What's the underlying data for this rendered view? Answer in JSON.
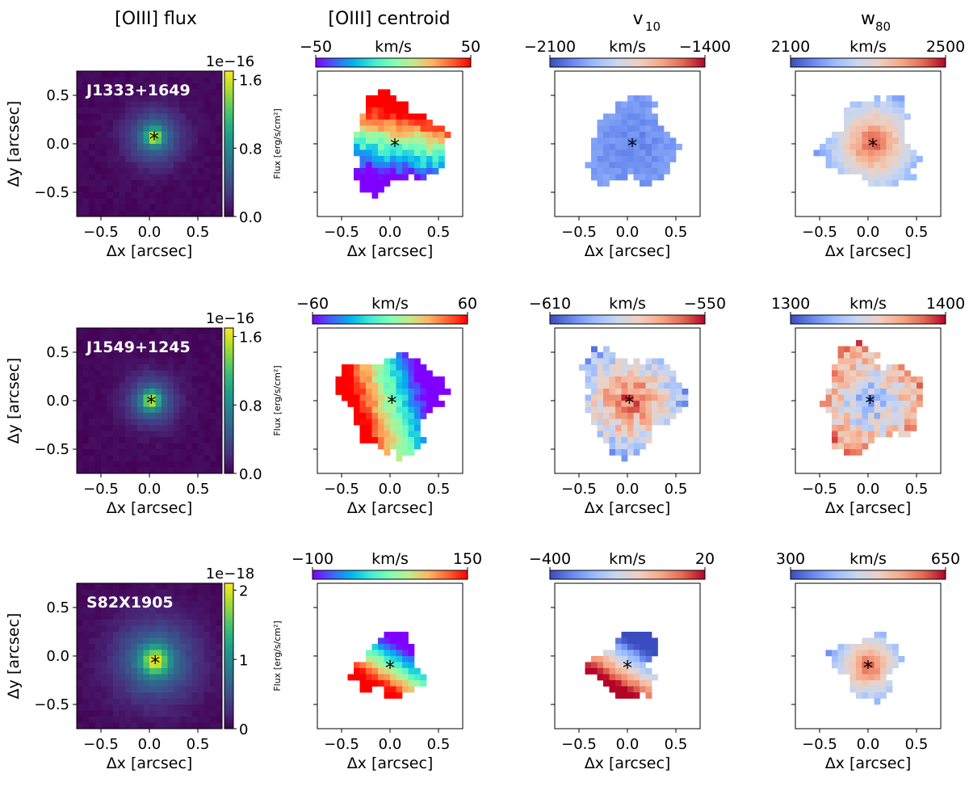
{
  "column_titles": [
    "[OIII] flux",
    "[OIII] centroid",
    "v",
    "w"
  ],
  "column_title_subscripts": [
    "",
    "",
    "10",
    "80"
  ],
  "colors": {
    "viridis": [
      "#440154",
      "#482878",
      "#3e4989",
      "#31688e",
      "#26828e",
      "#1f9e89",
      "#35b779",
      "#6ece58",
      "#b5de2b",
      "#fde725"
    ],
    "rainbow": [
      "#8000ff",
      "#4062fa",
      "#00b5eb",
      "#40ecd4",
      "#80ffb4",
      "#c0eb8d",
      "#ffb462",
      "#ff6232",
      "#ff0000"
    ],
    "coolwarm": [
      "#3b4cc0",
      "#6788ee",
      "#9abbff",
      "#c9d7f0",
      "#edd1c2",
      "#f7a889",
      "#e26952",
      "#b40426"
    ]
  },
  "chart_data": [
    {
      "type": "heatmap",
      "quantity": "[OIII] flux",
      "object": "J1333+1649",
      "colormap": "viridis",
      "colorbar": "vertical",
      "xlabel": "Δx [arcsec]",
      "ylabel": "Δy [arcsec]",
      "xlim": [
        -0.75,
        0.75
      ],
      "ylim": [
        -0.75,
        0.75
      ],
      "xticks": [
        "−0.5",
        "0.0",
        "0.5"
      ],
      "yticks": [
        "0.5",
        "0.0",
        "−0.5"
      ],
      "cbar_label": "Flux [erg/s/cm²]",
      "cbar_offset": "1e−16",
      "cbar_ticks": [
        "1.6",
        "0.8",
        "0.0"
      ],
      "cbar_range": [
        0.0,
        1.7
      ],
      "center": [
        0.05,
        0.07
      ],
      "peak_value": 1.7,
      "core_sigma": 0.06,
      "halo_sigma": 0.2
    },
    {
      "type": "heatmap",
      "quantity": "[OIII] centroid",
      "object": "J1333+1649",
      "colormap": "rainbow",
      "colorbar": "horizontal",
      "xlabel": "Δx [arcsec]",
      "xlim": [
        -0.75,
        0.75
      ],
      "ylim": [
        -0.75,
        0.75
      ],
      "xticks": [
        "−0.5",
        "0.0",
        "0.5"
      ],
      "cbar_unit": "km/s",
      "cbar_ticks": [
        "−50",
        "50"
      ],
      "cbar_range": [
        -50,
        50
      ],
      "center": [
        0.05,
        0.0
      ],
      "mask_radius": 0.47,
      "mask_shape": "irregular",
      "pattern": "gradient",
      "gradient_direction": [
        0.2,
        1.0
      ],
      "noise": 0.2
    },
    {
      "type": "heatmap",
      "quantity": "v10",
      "object": "J1333+1649",
      "colormap": "coolwarm",
      "colorbar": "horizontal",
      "xlabel": "Δx [arcsec]",
      "xlim": [
        -0.75,
        0.75
      ],
      "ylim": [
        -0.75,
        0.75
      ],
      "xticks": [
        "−0.5",
        "0.0",
        "0.5"
      ],
      "cbar_unit": "km/s",
      "cbar_ticks": [
        "−2100",
        "−1400"
      ],
      "cbar_range": [
        -2100,
        -1400
      ],
      "center": [
        0.05,
        0.0
      ],
      "mask_radius": 0.45,
      "mask_shape": "irregular",
      "pattern": "uniform-low",
      "noise": 0.08
    },
    {
      "type": "heatmap",
      "quantity": "w80",
      "object": "J1333+1649",
      "colormap": "coolwarm",
      "colorbar": "horizontal",
      "xlabel": "Δx [arcsec]",
      "xlim": [
        -0.75,
        0.75
      ],
      "ylim": [
        -0.75,
        0.75
      ],
      "xticks": [
        "−0.5",
        "0.0",
        "0.5"
      ],
      "cbar_unit": "km/s",
      "cbar_ticks": [
        "2100",
        "2500"
      ],
      "cbar_range": [
        2100,
        2500
      ],
      "center": [
        0.05,
        0.0
      ],
      "mask_radius": 0.45,
      "mask_shape": "irregular",
      "pattern": "peak-center",
      "noise": 0.1
    },
    {
      "type": "heatmap",
      "quantity": "[OIII] flux",
      "object": "J1549+1245",
      "colormap": "viridis",
      "colorbar": "vertical",
      "xlabel": "Δx [arcsec]",
      "ylabel": "Δy [arcsec]",
      "xlim": [
        -0.75,
        0.75
      ],
      "ylim": [
        -0.75,
        0.75
      ],
      "xticks": [
        "−0.5",
        "0.0",
        "0.5"
      ],
      "yticks": [
        "0.5",
        "0.0",
        "−0.5"
      ],
      "cbar_label": "Flux [erg/s/cm²]",
      "cbar_offset": "1e−16",
      "cbar_ticks": [
        "1.6",
        "0.8",
        "0.0"
      ],
      "cbar_range": [
        0.0,
        1.7
      ],
      "center": [
        0.02,
        0.0
      ],
      "peak_value": 1.7,
      "core_sigma": 0.06,
      "halo_sigma": 0.18
    },
    {
      "type": "heatmap",
      "quantity": "[OIII] centroid",
      "object": "J1549+1245",
      "colormap": "rainbow",
      "colorbar": "horizontal",
      "xlabel": "Δx [arcsec]",
      "xlim": [
        -0.75,
        0.75
      ],
      "ylim": [
        -0.75,
        0.75
      ],
      "xticks": [
        "−0.5",
        "0.0",
        "0.5"
      ],
      "cbar_unit": "km/s",
      "cbar_ticks": [
        "−60",
        "60"
      ],
      "cbar_range": [
        -60,
        60
      ],
      "center": [
        0.02,
        0.0
      ],
      "mask_radius": 0.5,
      "mask_shape": "irregular",
      "pattern": "gradient",
      "gradient_direction": [
        -1.0,
        -0.3
      ],
      "noise": 0.12
    },
    {
      "type": "heatmap",
      "quantity": "v10",
      "object": "J1549+1245",
      "colormap": "coolwarm",
      "colorbar": "horizontal",
      "xlabel": "Δx [arcsec]",
      "xlim": [
        -0.75,
        0.75
      ],
      "ylim": [
        -0.75,
        0.75
      ],
      "xticks": [
        "−0.5",
        "0.0",
        "0.5"
      ],
      "cbar_unit": "km/s",
      "cbar_ticks": [
        "−610",
        "−550"
      ],
      "cbar_range": [
        -610,
        -550
      ],
      "center": [
        0.02,
        0.0
      ],
      "mask_radius": 0.5,
      "mask_shape": "irregular",
      "pattern": "peak-center",
      "noise": 0.3
    },
    {
      "type": "heatmap",
      "quantity": "w80",
      "object": "J1549+1245",
      "colormap": "coolwarm",
      "colorbar": "horizontal",
      "xlabel": "Δx [arcsec]",
      "xlim": [
        -0.75,
        0.75
      ],
      "ylim": [
        -0.75,
        0.75
      ],
      "xticks": [
        "−0.5",
        "0.0",
        "0.5"
      ],
      "cbar_unit": "km/s",
      "cbar_ticks": [
        "1300",
        "1400"
      ],
      "cbar_range": [
        1300,
        1400
      ],
      "center": [
        0.02,
        0.0
      ],
      "mask_radius": 0.5,
      "mask_shape": "irregular",
      "pattern": "dip-center",
      "noise": 0.35
    },
    {
      "type": "heatmap",
      "quantity": "[OIII] flux",
      "object": "S82X1905",
      "colormap": "viridis",
      "colorbar": "vertical",
      "xlabel": "Δx [arcsec]",
      "ylabel": "Δy [arcsec]",
      "xlim": [
        -0.75,
        0.75
      ],
      "ylim": [
        -0.75,
        0.75
      ],
      "xticks": [
        "−0.5",
        "0.0",
        "0.5"
      ],
      "yticks": [
        "0.5",
        "0.0",
        "−0.5"
      ],
      "cbar_label": "Flux [erg/s/cm²]",
      "cbar_offset": "1e−18",
      "cbar_ticks": [
        "2",
        "1",
        "0"
      ],
      "cbar_range": [
        0,
        2.1
      ],
      "center": [
        0.06,
        -0.05
      ],
      "peak_value": 2.0,
      "core_sigma": 0.1,
      "halo_sigma": 0.3
    },
    {
      "type": "heatmap",
      "quantity": "[OIII] centroid",
      "object": "S82X1905",
      "colormap": "rainbow",
      "colorbar": "horizontal",
      "xlabel": "Δx [arcsec]",
      "xlim": [
        -0.75,
        0.75
      ],
      "ylim": [
        -0.75,
        0.75
      ],
      "xticks": [
        "−0.5",
        "0.0",
        "0.5"
      ],
      "cbar_unit": "km/s",
      "cbar_ticks": [
        "−100",
        "150"
      ],
      "cbar_range": [
        -100,
        150
      ],
      "center": [
        0.0,
        -0.1
      ],
      "mask_radius": 0.33,
      "mask_shape": "irregular",
      "pattern": "gradient",
      "gradient_direction": [
        -0.6,
        -1.0
      ],
      "noise": 0.08
    },
    {
      "type": "heatmap",
      "quantity": "v10",
      "object": "S82X1905",
      "colormap": "coolwarm",
      "colorbar": "horizontal",
      "xlabel": "Δx [arcsec]",
      "xlim": [
        -0.75,
        0.75
      ],
      "ylim": [
        -0.75,
        0.75
      ],
      "xticks": [
        "−0.5",
        "0.0",
        "0.5"
      ],
      "cbar_unit": "km/s",
      "cbar_ticks": [
        "−400",
        "20"
      ],
      "cbar_range": [
        -400,
        20
      ],
      "center": [
        0.0,
        -0.1
      ],
      "mask_radius": 0.33,
      "mask_shape": "irregular",
      "pattern": "gradient",
      "gradient_direction": [
        -0.6,
        -1.0
      ],
      "noise": 0.08
    },
    {
      "type": "heatmap",
      "quantity": "w80",
      "object": "S82X1905",
      "colormap": "coolwarm",
      "colorbar": "horizontal",
      "xlabel": "Δx [arcsec]",
      "xlim": [
        -0.75,
        0.75
      ],
      "ylim": [
        -0.75,
        0.75
      ],
      "xticks": [
        "−0.5",
        "0.0",
        "0.5"
      ],
      "cbar_unit": "km/s",
      "cbar_ticks": [
        "300",
        "650"
      ],
      "cbar_range": [
        300,
        650
      ],
      "center": [
        0.0,
        -0.1
      ],
      "mask_radius": 0.33,
      "mask_shape": "irregular",
      "pattern": "peak-center",
      "noise": 0.1
    }
  ]
}
